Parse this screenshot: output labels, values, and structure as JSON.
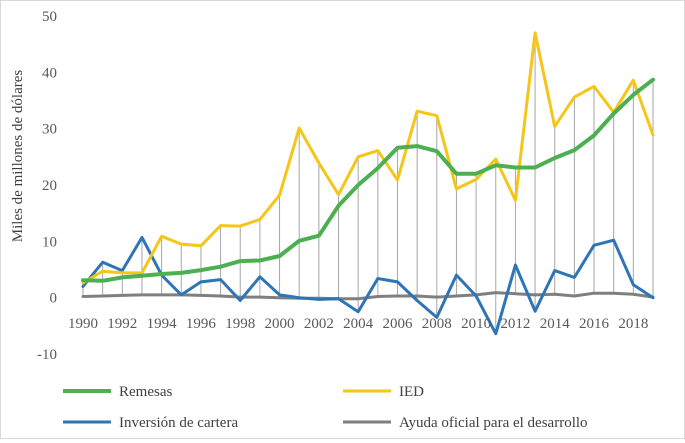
{
  "chart_data": {
    "type": "line",
    "title": "",
    "xlabel": "",
    "ylabel": "Miles de millones de dólares",
    "ylim": [
      -10,
      50
    ],
    "yticks": [
      -10,
      0,
      10,
      20,
      30,
      40,
      50
    ],
    "x": [
      1990,
      1991,
      1992,
      1993,
      1994,
      1995,
      1996,
      1997,
      1998,
      1999,
      2000,
      2001,
      2002,
      2003,
      2004,
      2005,
      2006,
      2007,
      2008,
      2009,
      2010,
      2011,
      2012,
      2013,
      2014,
      2015,
      2016,
      2017,
      2018,
      2019
    ],
    "xtick_labels": [
      "1990",
      "1992",
      "1994",
      "1996",
      "1998",
      "2000",
      "2002",
      "2004",
      "2006",
      "2008",
      "2010",
      "2012",
      "2014",
      "2016",
      "2018"
    ],
    "drop_lines": true,
    "legend_position": "bottom",
    "series": [
      {
        "name": "Remesas",
        "color": "#4caf50",
        "values": [
          3.1,
          3.0,
          3.6,
          3.9,
          4.2,
          4.4,
          4.9,
          5.5,
          6.5,
          6.6,
          7.4,
          10.1,
          11.0,
          16.3,
          20.0,
          23.0,
          26.6,
          26.9,
          26.0,
          22.0,
          22.0,
          23.5,
          23.1,
          23.1,
          24.8,
          26.2,
          28.8,
          32.7,
          36.0,
          38.7
        ]
      },
      {
        "name": "IED",
        "color": "#f5c518",
        "values": [
          2.6,
          4.7,
          4.4,
          4.4,
          10.9,
          9.5,
          9.2,
          12.8,
          12.7,
          13.9,
          18.2,
          30.1,
          23.9,
          18.3,
          25.0,
          26.1,
          20.9,
          33.1,
          32.3,
          19.3,
          21.0,
          24.6,
          17.3,
          47.0,
          30.4,
          35.6,
          37.5,
          32.9,
          38.6,
          28.9
        ]
      },
      {
        "name": "Inversión de cartera",
        "color": "#2e75b6",
        "values": [
          2.0,
          6.3,
          4.8,
          10.7,
          4.0,
          0.5,
          2.8,
          3.2,
          -0.5,
          3.7,
          0.5,
          0.0,
          -0.3,
          -0.2,
          -2.5,
          3.4,
          2.8,
          -0.5,
          -3.5,
          4.0,
          0.3,
          -6.4,
          5.8,
          -2.4,
          4.8,
          3.6,
          9.3,
          10.2,
          2.3,
          0.0
        ]
      },
      {
        "name": "Ayuda oficial para el desarrollo",
        "color": "#7f7f7f",
        "values": [
          0.2,
          0.3,
          0.4,
          0.5,
          0.5,
          0.5,
          0.4,
          0.3,
          0.1,
          0.1,
          0.0,
          -0.1,
          -0.1,
          -0.2,
          -0.2,
          0.2,
          0.3,
          0.3,
          0.1,
          0.3,
          0.5,
          0.9,
          0.7,
          0.5,
          0.6,
          0.3,
          0.8,
          0.8,
          0.6,
          0.1
        ]
      }
    ]
  }
}
